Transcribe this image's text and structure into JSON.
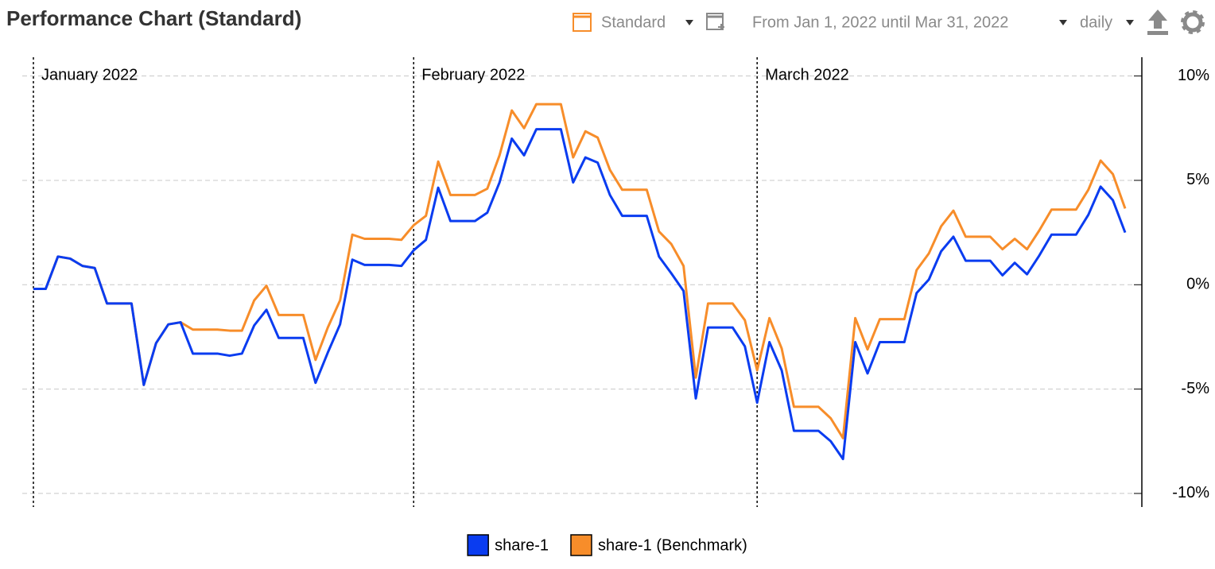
{
  "header": {
    "title": "Performance Chart (Standard)",
    "view": "Standard",
    "range": "From Jan 1, 2022 until Mar 31, 2022",
    "interval": "daily"
  },
  "chart_data": {
    "type": "line",
    "categories": [
      "January 2022",
      null,
      null,
      null,
      null,
      null,
      null,
      null,
      null,
      null,
      null,
      null,
      null,
      null,
      null,
      null,
      null,
      null,
      null,
      null,
      null,
      null,
      null,
      null,
      null,
      null,
      null,
      null,
      null,
      null,
      null,
      "February 2022",
      null,
      null,
      null,
      null,
      null,
      null,
      null,
      null,
      null,
      null,
      null,
      null,
      null,
      null,
      null,
      null,
      null,
      null,
      null,
      null,
      null,
      null,
      null,
      null,
      null,
      null,
      null,
      "March 2022",
      null,
      null,
      null,
      null,
      null,
      null,
      null,
      null,
      null,
      null,
      null,
      null,
      null,
      null,
      null,
      null,
      null,
      null,
      null,
      null,
      null,
      null,
      null,
      null,
      null,
      null,
      null,
      null,
      null,
      null
    ],
    "series": [
      {
        "name": "share-1",
        "color": "#0a3cf0",
        "values": [
          -0.2,
          -0.2,
          1.35,
          1.25,
          0.9,
          0.8,
          -0.9,
          -0.9,
          -0.9,
          -4.8,
          -2.8,
          -1.9,
          -1.8,
          -3.3,
          -3.3,
          -3.3,
          -3.4,
          -3.3,
          -1.95,
          -1.2,
          -2.55,
          -2.55,
          -2.55,
          -4.7,
          -3.25,
          -1.9,
          1.2,
          0.95,
          0.95,
          0.95,
          0.9,
          1.65,
          2.15,
          4.65,
          3.05,
          3.05,
          3.05,
          3.45,
          4.9,
          7.0,
          6.2,
          7.45,
          7.45,
          7.45,
          4.9,
          6.1,
          5.85,
          4.3,
          3.3,
          3.3,
          3.3,
          1.35,
          0.55,
          -0.3,
          -5.45,
          -2.05,
          -2.05,
          -2.05,
          -2.95,
          -5.65,
          -2.75,
          -4.1,
          -7.0,
          -7.0,
          -7.0,
          -7.5,
          -8.35,
          -2.75,
          -4.25,
          -2.75,
          -2.75,
          -2.75,
          -0.4,
          0.25,
          1.6,
          2.3,
          1.15,
          1.15,
          1.15,
          0.45,
          1.05,
          0.5,
          1.4,
          2.4,
          2.4,
          2.4,
          3.35,
          4.7,
          4.05,
          2.5
        ]
      },
      {
        "name": "share-1 (Benchmark)",
        "color": "#f78d2a",
        "values": [
          -0.2,
          -0.2,
          1.35,
          1.25,
          0.9,
          0.8,
          -0.9,
          -0.9,
          -0.9,
          -4.8,
          -2.8,
          -1.9,
          -1.8,
          -2.15,
          -2.15,
          -2.15,
          -2.2,
          -2.2,
          -0.75,
          -0.05,
          -1.45,
          -1.45,
          -1.45,
          -3.6,
          -2.05,
          -0.75,
          2.4,
          2.2,
          2.2,
          2.2,
          2.15,
          2.85,
          3.3,
          5.9,
          4.3,
          4.3,
          4.3,
          4.6,
          6.2,
          8.35,
          7.5,
          8.65,
          8.65,
          8.65,
          6.1,
          7.35,
          7.05,
          5.5,
          4.55,
          4.55,
          4.55,
          2.55,
          1.95,
          0.9,
          -4.45,
          -0.9,
          -0.9,
          -0.9,
          -1.7,
          -4.1,
          -1.6,
          -3.05,
          -5.85,
          -5.85,
          -5.85,
          -6.4,
          -7.35,
          -1.6,
          -3.1,
          -1.65,
          -1.65,
          -1.65,
          0.7,
          1.5,
          2.8,
          3.55,
          2.3,
          2.3,
          2.3,
          1.7,
          2.2,
          1.7,
          2.6,
          3.6,
          3.6,
          3.6,
          4.55,
          5.95,
          5.3,
          3.65
        ]
      }
    ],
    "ylim": [
      -10.65,
      10.9
    ],
    "yticks": [
      {
        "value": 10,
        "label": "10%"
      },
      {
        "value": 5,
        "label": "5%"
      },
      {
        "value": 0,
        "label": "0%"
      },
      {
        "value": -5,
        "label": "-5%"
      },
      {
        "value": -10,
        "label": "-10%"
      }
    ],
    "grid": true
  }
}
